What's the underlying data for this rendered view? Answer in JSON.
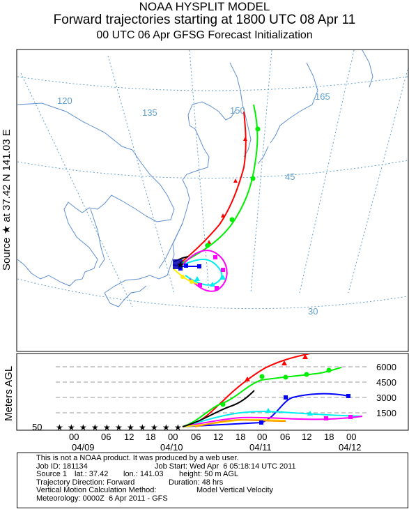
{
  "title": {
    "line1": "NOAA HYSPLIT MODEL",
    "line2": "Forward trajectories starting at 1800 UTC 08 Apr 11",
    "line3": "00 UTC 06 Apr    GFSG  Forecast Initialization"
  },
  "side_label": "Source ★ at   37.42 N  141.03 E",
  "map": {
    "longitude_labels": [
      "120",
      "135",
      "150",
      "165"
    ],
    "latitude_labels": [
      "45",
      "30"
    ],
    "source": {
      "lat": 37.42,
      "lon": 141.03
    }
  },
  "vertical_panel": {
    "ylabel": "Meters AGL",
    "height_ticks": [
      "6000",
      "4500",
      "3000",
      "1500"
    ],
    "bottom_value_label": "50",
    "time_ticks": [
      "00",
      "06",
      "12",
      "18",
      "00",
      "06",
      "12",
      "18",
      "00",
      "06",
      "12",
      "18",
      "00"
    ],
    "date_labels": [
      "04/09",
      "04/10",
      "04/11",
      "04/12"
    ]
  },
  "footer": {
    "disclaimer": "This is not a NOAA product. It was produced by a web user.",
    "job_id": "Job ID: 181134",
    "job_start": "Job Start: Wed Apr  6 05:18:14 UTC 2011",
    "source": "Source 1",
    "lat": "lat.: 37.42",
    "lon": "lon.: 141.03",
    "height": "height: 50 m AGL",
    "direction": "Trajectory Direction: Forward",
    "duration": "Duration: 48 hrs",
    "vertical_method_label": "Vertical Motion Calculation Method:",
    "vertical_method": "Model Vertical Velocity",
    "meteorology": "Meteorology: 0000Z  6 Apr 2011 - GFS"
  },
  "colors": {
    "trajectories": [
      "#ff0000",
      "#00ee00",
      "#0000ff",
      "#00eeee",
      "#ff00ff",
      "#ffee00",
      "#000000"
    ],
    "grid": "#5f9fcf",
    "coast": "#5f8fcf"
  }
}
